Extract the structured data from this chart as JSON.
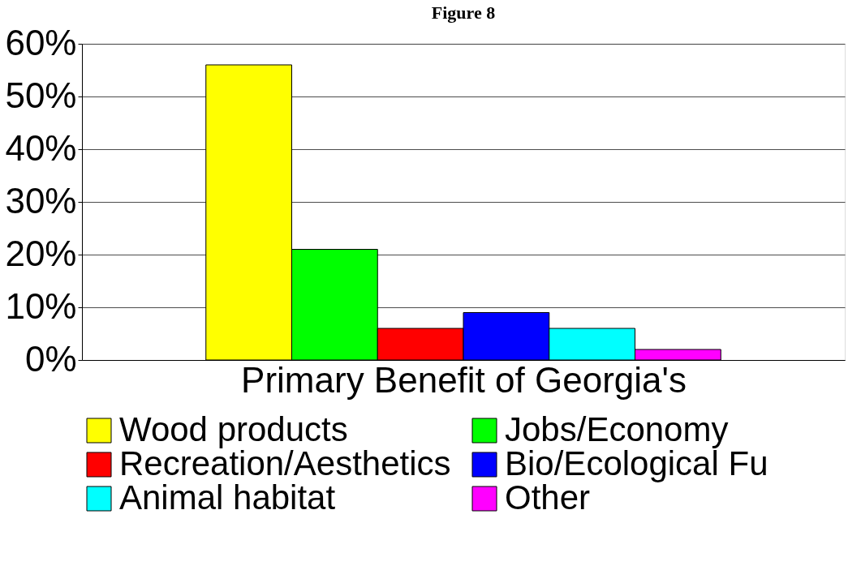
{
  "chart_data": {
    "type": "bar",
    "title": "Figure 8",
    "xlabel": "Primary Benefit of Georgia's",
    "categories": [
      null
    ],
    "series": [
      {
        "name": "Wood products",
        "color": "#ffff00",
        "values": [
          56
        ]
      },
      {
        "name": "Jobs/Economy",
        "color": "#00ff00",
        "values": [
          21
        ]
      },
      {
        "name": "Recreation/Aesthetics",
        "color": "#ff0000",
        "values": [
          6
        ]
      },
      {
        "name": "Bio/Ecological Fu",
        "color": "#0000ff",
        "values": [
          9
        ]
      },
      {
        "name": "Animal habitat",
        "color": "#00ffff",
        "values": [
          6
        ]
      },
      {
        "name": "Other",
        "color": "#ff00ff",
        "values": [
          2
        ]
      }
    ],
    "ylim": [
      0,
      60
    ],
    "yticks": [
      {
        "value": 0,
        "label": "0%"
      },
      {
        "value": 10,
        "label": "10%"
      },
      {
        "value": 20,
        "label": "20%"
      },
      {
        "value": 30,
        "label": "30%"
      },
      {
        "value": 40,
        "label": "40%"
      },
      {
        "value": 50,
        "label": "50%"
      },
      {
        "value": 60,
        "label": "60%"
      }
    ],
    "grid": "y",
    "legend": "bottom",
    "tick_labels": "y"
  }
}
